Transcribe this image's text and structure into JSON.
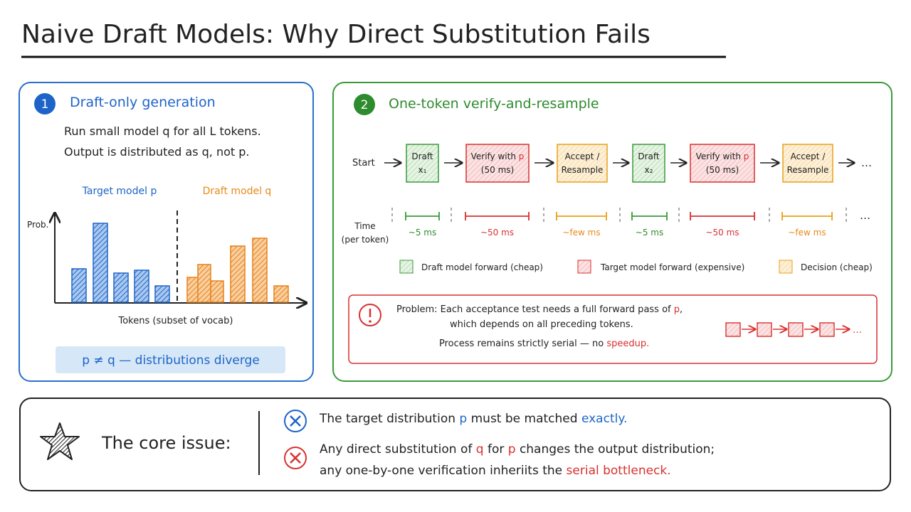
{
  "title": "Naive Draft Models: Why Direct Substitution Fails",
  "panel1": {
    "number": "1",
    "heading": "Draft-only generation",
    "lines": [
      "Run small model q for all L tokens.",
      "Output is distributed as q, not p."
    ],
    "target_label": "Target model p",
    "draft_label": "Draft model q",
    "y_label": "Prob.",
    "x_label": "Tokens (subset of vocab)",
    "callout": "p ≠ q — distributions diverge"
  },
  "panel2": {
    "number": "2",
    "heading": "One-token verify-and-resample",
    "start": "Start",
    "steps": [
      {
        "line1": [
          "Draft"
        ],
        "line2": "x₁"
      },
      {
        "line1": [
          "Verify with",
          "p"
        ],
        "line2": "(50 ms)"
      },
      {
        "line1": [
          "Accept /"
        ],
        "line2": "Resample"
      },
      {
        "line1": [
          "Draft"
        ],
        "line2": "x₂"
      },
      {
        "line1": [
          "Verify with",
          "p"
        ],
        "line2": "(50 ms)"
      },
      {
        "line1": [
          "Accept /"
        ],
        "line2": "Resample"
      }
    ],
    "ellipsis": "…",
    "time_label": [
      "Time",
      "(per token)"
    ],
    "durations": [
      "~5 ms",
      "~50 ms",
      "~few ms",
      "~5 ms",
      "~50 ms",
      "~few ms"
    ],
    "time_ellipsis": "…",
    "legend": [
      "Draft model forward (cheap)",
      "Target model forward (expensive)",
      "Decision (cheap)"
    ],
    "problem": {
      "line1": [
        "Problem: Each acceptance test needs a full forward pass of",
        "p",
        ","
      ],
      "line2": "which depends on all preceding tokens.",
      "line3": [
        "Process remains strictly serial — no",
        "speedup."
      ],
      "chain_ellipsis": "…"
    }
  },
  "core": {
    "label": "The core issue:",
    "point1": [
      "The target distribution",
      "p",
      "must be matched",
      "exactly."
    ],
    "point2": [
      "Any direct substitution of",
      "q",
      "for",
      "p",
      "changes the output distribution;"
    ],
    "point2_cont": [
      "any one-by-one verification inheriits the",
      "serial bottleneck."
    ]
  }
}
